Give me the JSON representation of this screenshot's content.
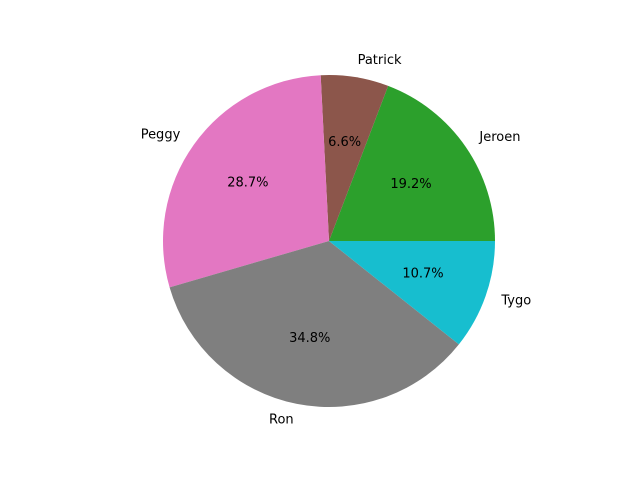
{
  "chart_data": {
    "type": "pie",
    "start_angle_deg": 0,
    "direction": "counterclockwise",
    "slices": [
      {
        "label": "Jeroen",
        "percent": 19.2,
        "percent_label": "19.2%",
        "color": "#2ca02c"
      },
      {
        "label": "Patrick",
        "percent": 6.6,
        "percent_label": "6.6%",
        "color": "#8c564b"
      },
      {
        "label": "Peggy",
        "percent": 28.7,
        "percent_label": "28.7%",
        "color": "#e377c2"
      },
      {
        "label": "Ron",
        "percent": 34.8,
        "percent_label": "34.8%",
        "color": "#7f7f7f"
      },
      {
        "label": "Tygo",
        "percent": 10.7,
        "percent_label": "10.7%",
        "color": "#17becf"
      }
    ]
  }
}
